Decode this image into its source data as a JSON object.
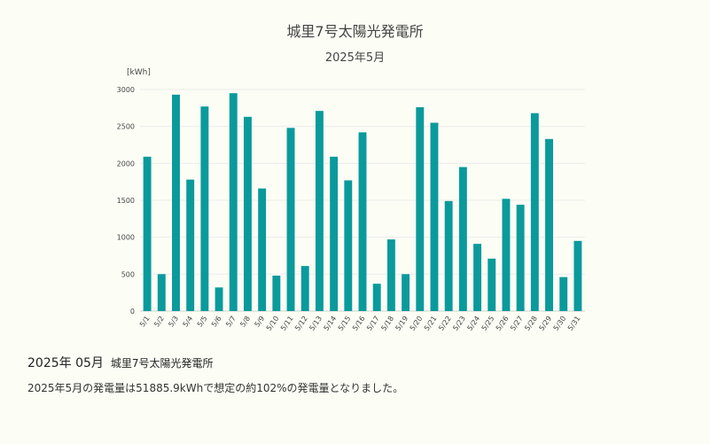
{
  "chart_data": {
    "type": "bar",
    "title": "城里7号太陽光発電所",
    "subtitle": "2025年5月",
    "ylabel": "[kWh]",
    "xlabel": "",
    "ylim": [
      0,
      3000
    ],
    "yticks": [
      0,
      500,
      1000,
      1500,
      2000,
      2500,
      3000
    ],
    "grid": true,
    "bar_color": "#0a9a9c",
    "categories": [
      "5/1",
      "5/2",
      "5/3",
      "5/4",
      "5/5",
      "5/6",
      "5/7",
      "5/8",
      "5/9",
      "5/10",
      "5/11",
      "5/12",
      "5/13",
      "5/14",
      "5/15",
      "5/16",
      "5/17",
      "5/18",
      "5/19",
      "5/20",
      "5/21",
      "5/22",
      "5/23",
      "5/24",
      "5/25",
      "5/26",
      "5/27",
      "5/28",
      "5/29",
      "5/30",
      "5/31"
    ],
    "values": [
      2090,
      500,
      2930,
      1780,
      2770,
      320,
      2950,
      2630,
      1660,
      480,
      2480,
      610,
      2710,
      2090,
      1770,
      2420,
      370,
      970,
      500,
      2760,
      2550,
      1490,
      1950,
      910,
      710,
      1520,
      1440,
      2680,
      2330,
      460,
      950
    ]
  },
  "summary": {
    "period": "2025年 05月",
    "plant": "城里7号太陽光発電所",
    "text": "2025年5月の発電量は51885.9kWhで想定の約102%の発電量となりました。"
  }
}
